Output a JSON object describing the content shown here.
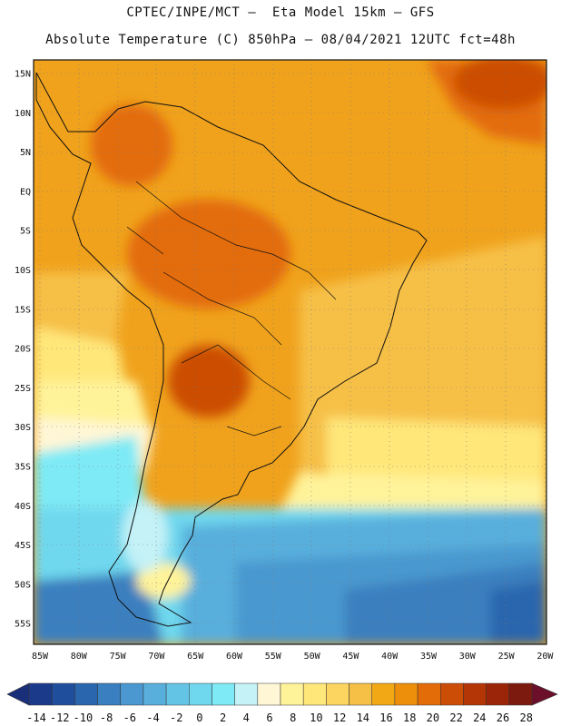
{
  "header": {
    "line1": "CPTEC/INPE/MCT –  Eta Model 15km – GFS",
    "line2": "Absolute Temperature (C) 850hPa – 08/04/2021 12UTC fct=48h"
  },
  "axes": {
    "lat_labels": [
      "15N",
      "10N",
      "5N",
      "EQ",
      "5S",
      "10S",
      "15S",
      "20S",
      "25S",
      "30S",
      "35S",
      "40S",
      "45S",
      "50S",
      "55S"
    ],
    "lon_labels": [
      "85W",
      "80W",
      "75W",
      "70W",
      "65W",
      "60W",
      "55W",
      "50W",
      "45W",
      "40W",
      "35W",
      "30W",
      "25W",
      "20W"
    ]
  },
  "colorbar": {
    "values": [
      "-14",
      "-12",
      "-10",
      "-8",
      "-6",
      "-4",
      "-2",
      "0",
      "2",
      "4",
      "6",
      "8",
      "10",
      "12",
      "14",
      "16",
      "18",
      "20",
      "22",
      "24",
      "26",
      "28"
    ],
    "colors": [
      "#1b3a8a",
      "#1f4f9c",
      "#2a66ad",
      "#3a7fbf",
      "#4a98cf",
      "#58afdc",
      "#64c4e6",
      "#6fd8ee",
      "#7eeaf5",
      "#c4f2f7",
      "#fff6d6",
      "#fff39a",
      "#ffe77a",
      "#fcd561",
      "#f6c047",
      "#f2a814",
      "#ee8f0c",
      "#e36c08",
      "#cc4d06",
      "#b43506",
      "#9a2508",
      "#7d1a10"
    ],
    "under_color": "#1a2f7a",
    "over_color": "#6b0f2a"
  },
  "map": {
    "background_color": "#f0a21c",
    "grid": "dotted"
  }
}
